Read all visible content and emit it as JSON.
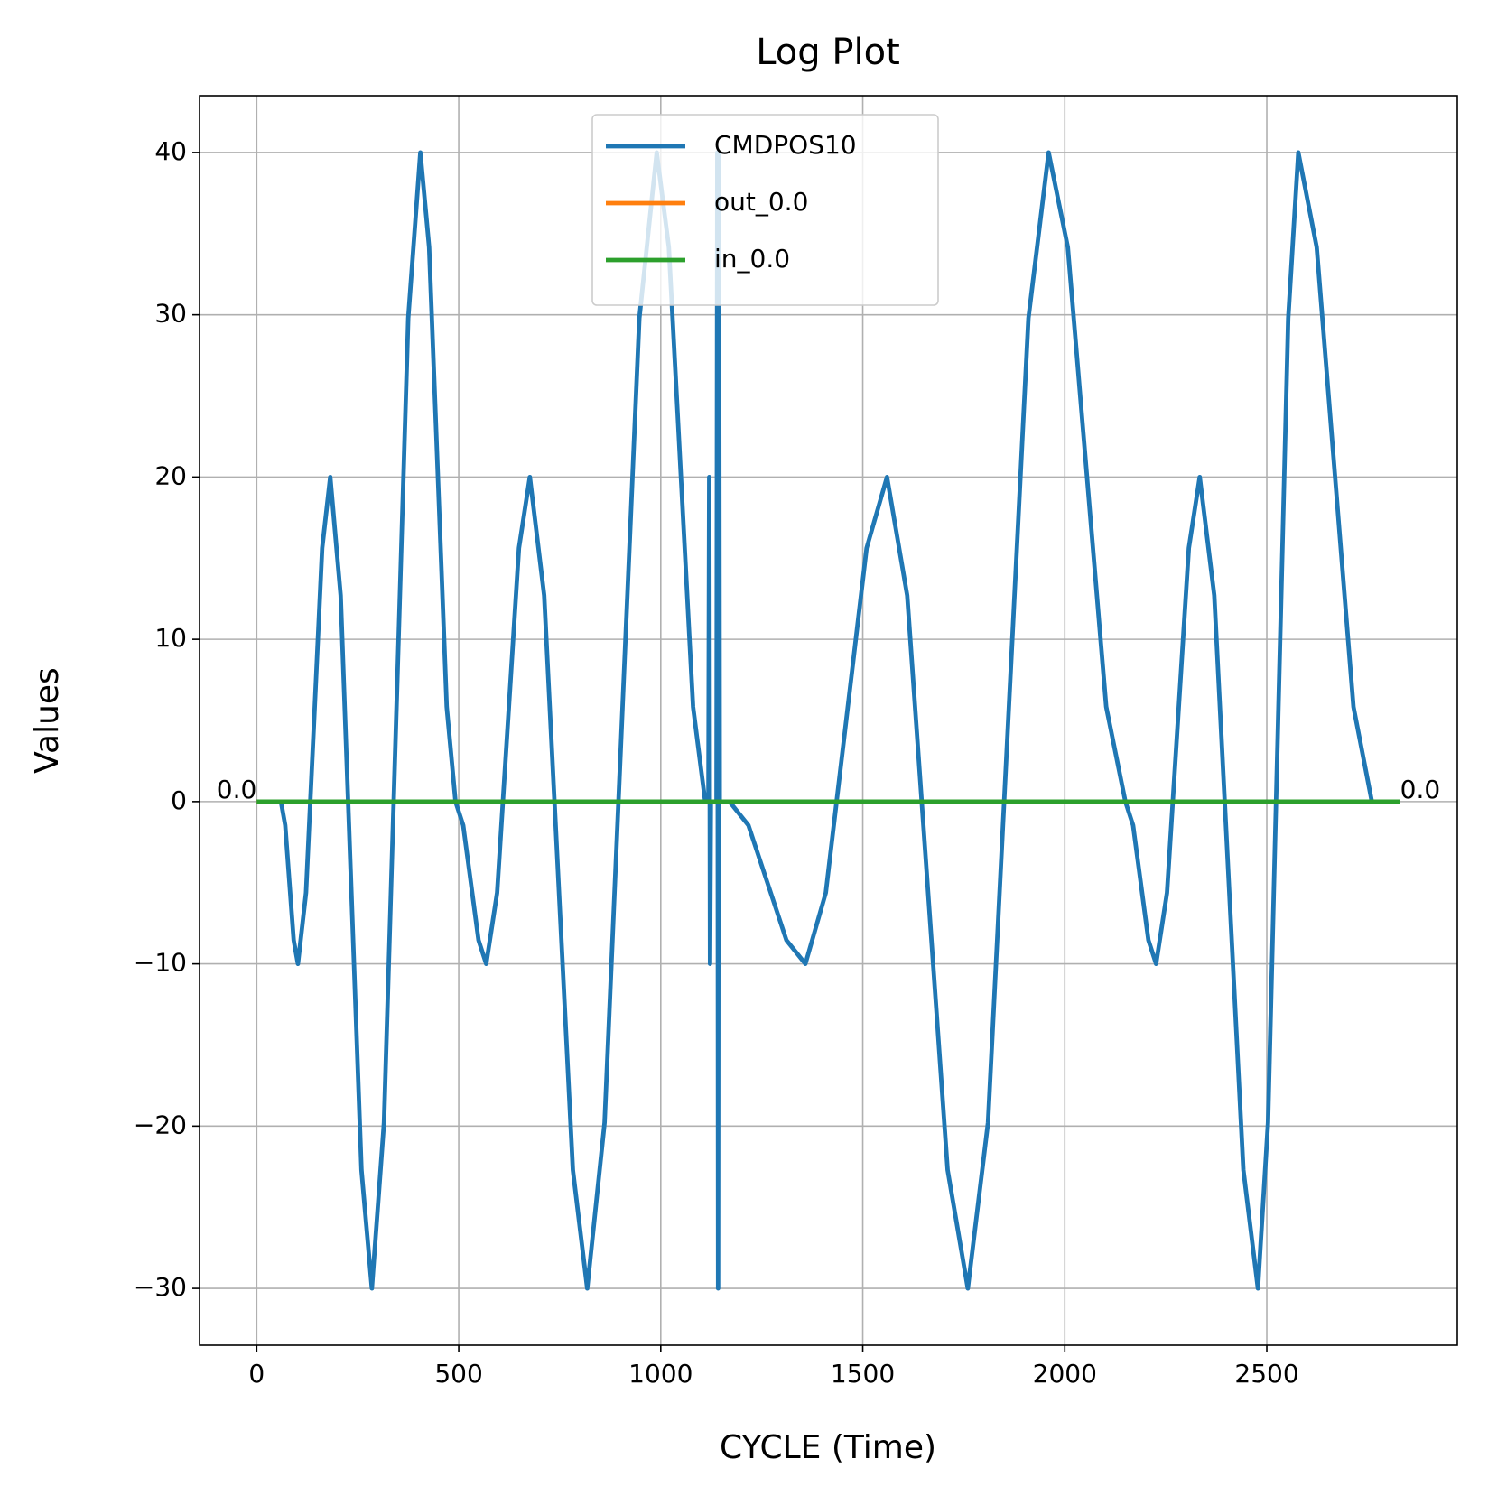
{
  "chart_data": {
    "type": "line",
    "title": "Log Plot",
    "x_label": "CYCLE (Time)",
    "y_label": "Values",
    "xlim": [
      -141.5,
      2971.5
    ],
    "ylim": [
      -33.5,
      43.5
    ],
    "xticks": [
      0,
      500,
      1000,
      1500,
      2000,
      2500
    ],
    "yticks": [
      {
        "value": -30,
        "label": "−30"
      },
      {
        "value": -20,
        "label": "−20"
      },
      {
        "value": -10,
        "label": "−10"
      },
      0,
      10,
      20,
      30,
      40
    ],
    "grid": true,
    "legend": "upper center",
    "series": [
      {
        "name": "CMDPOS10",
        "color": "#1f77b4",
        "x": [
          0,
          60,
          70.5,
          81,
          91.5,
          102,
          122,
          142,
          162,
          182,
          207.75,
          233.5,
          259.25,
          285,
          315,
          345,
          375,
          405,
          426.75,
          448.5,
          470.25,
          492,
          511,
          530,
          549,
          568,
          595,
          622,
          649,
          676,
          711.5,
          747,
          782.5,
          818,
          861,
          904,
          947,
          990,
          1020,
          1050,
          1080,
          1110,
          1118,
          1120,
          1122,
          1124,
          1138,
          1140,
          1142,
          1144,
          1146,
          1170,
          1217,
          1264,
          1311,
          1358,
          1408.5,
          1459,
          1509.5,
          1560,
          1610,
          1660,
          1710,
          1760,
          1810,
          1860,
          1910,
          1960,
          2007.5,
          2055,
          2102.5,
          2150,
          2169,
          2188,
          2207,
          2226,
          2253,
          2280,
          2307,
          2334,
          2370,
          2406,
          2442,
          2478,
          2503,
          2528,
          2553,
          2578,
          2623.5,
          2669,
          2714.5,
          2760,
          2830
        ],
        "values": [
          0,
          0,
          -1.46,
          -5,
          -8.54,
          -10,
          -5.62,
          5,
          15.62,
          20,
          12.7,
          -5,
          -22.7,
          -30,
          -19.78,
          5,
          29.78,
          40,
          34.16,
          20,
          5.84,
          0,
          -1.46,
          -5,
          -8.54,
          -10,
          -5.62,
          5,
          15.62,
          20,
          12.7,
          -5,
          -22.7,
          -30,
          -19.78,
          5,
          29.78,
          40,
          34.16,
          20,
          5.84,
          0,
          0,
          20,
          -10,
          0,
          0,
          40,
          -30,
          40,
          0,
          0,
          -1.46,
          -5,
          -8.54,
          -10,
          -5.62,
          5,
          15.62,
          20,
          12.7,
          -5,
          -22.7,
          -30,
          -19.78,
          5,
          29.78,
          40,
          34.16,
          20,
          5.84,
          0,
          -1.46,
          -5,
          -8.54,
          -10,
          -5.62,
          5,
          15.62,
          20,
          12.7,
          -5,
          -22.7,
          -30,
          -19.78,
          5,
          29.78,
          40,
          34.16,
          20,
          5.84,
          0,
          0
        ]
      },
      {
        "name": "out_0.0",
        "color": "#ff7f0e",
        "x": [
          0,
          2830
        ],
        "values": [
          0,
          0
        ]
      },
      {
        "name": "in_0.0",
        "color": "#2ca02c",
        "x": [
          0,
          2830
        ],
        "values": [
          0,
          0
        ]
      }
    ],
    "annotations": [
      {
        "text": "0.0",
        "x": 0,
        "y": 0,
        "color": "#1f77b4"
      },
      {
        "text": "0.0",
        "x": 2830,
        "y": 0,
        "color": "#1f77b4"
      }
    ]
  }
}
